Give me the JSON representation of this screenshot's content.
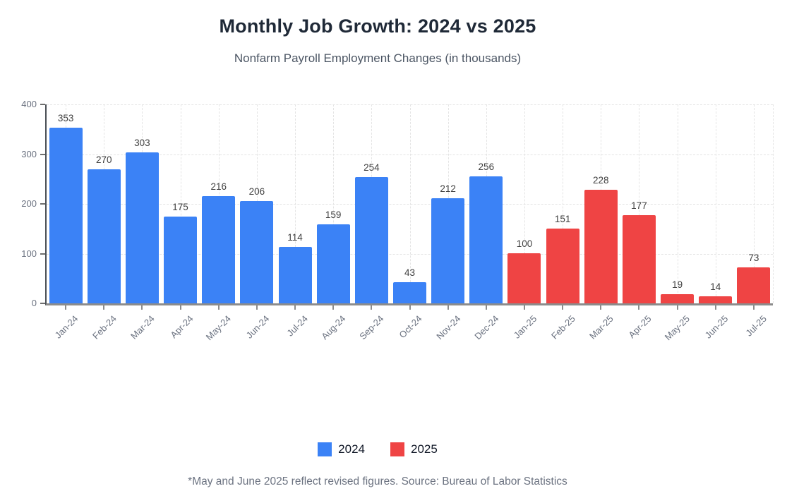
{
  "header": {
    "title": "Monthly Job Growth: 2024 vs 2025",
    "subtitle": "Nonfarm Payroll Employment Changes (in thousands)"
  },
  "footer": {
    "note": "*May and June 2025 reflect revised figures. Source: Bureau of Labor Statistics"
  },
  "colors": {
    "series_2024": "#3b82f6",
    "series_2025": "#ef4444",
    "grid": "#e4e4e4",
    "axis_y": "#4a5056",
    "axis_x": "#8c8c8c"
  },
  "chart_data": {
    "type": "bar",
    "title": "Monthly Job Growth: 2024 vs 2025",
    "subtitle": "Nonfarm Payroll Employment Changes (in thousands)",
    "categories": [
      "Jan-24",
      "Feb-24",
      "Mar-24",
      "Apr-24",
      "May-24",
      "Jun-24",
      "Jul-24",
      "Aug-24",
      "Sep-24",
      "Oct-24",
      "Nov-24",
      "Dec-24",
      "Jan-25",
      "Feb-25",
      "Mar-25",
      "Apr-25",
      "May-25",
      "Jun-25",
      "Jul-25"
    ],
    "series": [
      {
        "name": "2024",
        "color": "#3b82f6",
        "start_index": 0,
        "values": [
          353,
          270,
          303,
          175,
          216,
          206,
          114,
          159,
          254,
          43,
          212,
          256
        ]
      },
      {
        "name": "2025",
        "color": "#ef4444",
        "start_index": 12,
        "values": [
          100,
          151,
          228,
          177,
          19,
          14,
          73
        ]
      }
    ],
    "xlabel": "",
    "ylabel": "",
    "ylim": [
      0,
      400
    ],
    "yticks": [
      0,
      100,
      200,
      300,
      400
    ],
    "grid": true,
    "grid_style": "dashed",
    "data_labels": true,
    "legend_position": "bottom",
    "x_tick_rotation": -45
  }
}
